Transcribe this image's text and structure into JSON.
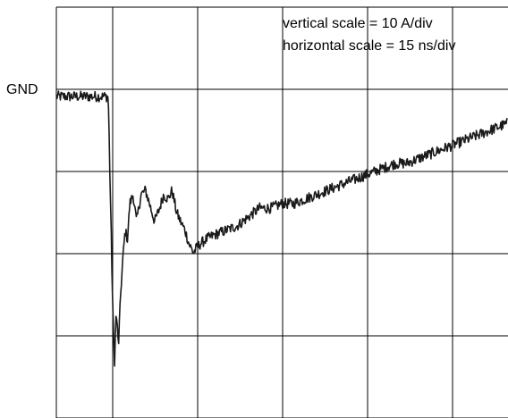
{
  "scope": {
    "ground_label": "GND",
    "annotations": [
      "vertical scale = 10 A/div",
      "horizontal scale = 15 ns/div"
    ],
    "trace_color": "#1a1a1a",
    "grid_color": "#000000"
  },
  "chart_data": {
    "type": "line",
    "title": "",
    "xlabel": "",
    "ylabel": "",
    "x_unit": "ns",
    "y_unit": "A",
    "x_div": 15,
    "y_div": 10,
    "xlim": [
      0,
      80
    ],
    "ylim": [
      -36,
      10
    ],
    "grid": true,
    "noise_amplitude": 0.6,
    "series": [
      {
        "x": [
          0,
          8,
          9.2,
          9.6,
          10,
          10.3,
          10.6,
          11,
          11.4,
          11.8,
          12.2,
          12.6,
          13,
          13.6,
          14.2,
          15,
          15.8,
          16.5,
          17.4,
          18.3,
          19,
          19.8,
          20.5,
          21.3,
          22,
          22.8,
          23.5,
          24.3,
          24.8,
          25.5,
          26.5,
          28,
          30,
          32,
          34,
          36,
          38,
          40,
          42,
          44,
          46,
          48,
          50,
          52,
          54,
          56,
          58,
          60,
          62,
          64,
          66,
          68,
          70,
          72,
          74,
          76,
          78,
          80
        ],
        "y": [
          0,
          0,
          0,
          -12,
          -24,
          -30,
          -24,
          -28,
          -22,
          -18,
          -15,
          -16,
          -12,
          -11,
          -14,
          -11,
          -10.5,
          -12,
          -14,
          -12.5,
          -11,
          -11.5,
          -10.5,
          -13,
          -14,
          -15,
          -16.5,
          -17.5,
          -17,
          -16.5,
          -16,
          -15.5,
          -15,
          -14.5,
          -13.5,
          -12.5,
          -12.5,
          -12,
          -12,
          -11.5,
          -11,
          -10.5,
          -10,
          -9.5,
          -9,
          -8.5,
          -8,
          -7.5,
          -7.5,
          -7,
          -6.5,
          -6,
          -5.5,
          -5,
          -4.5,
          -4,
          -3.5,
          -3
        ]
      }
    ]
  }
}
